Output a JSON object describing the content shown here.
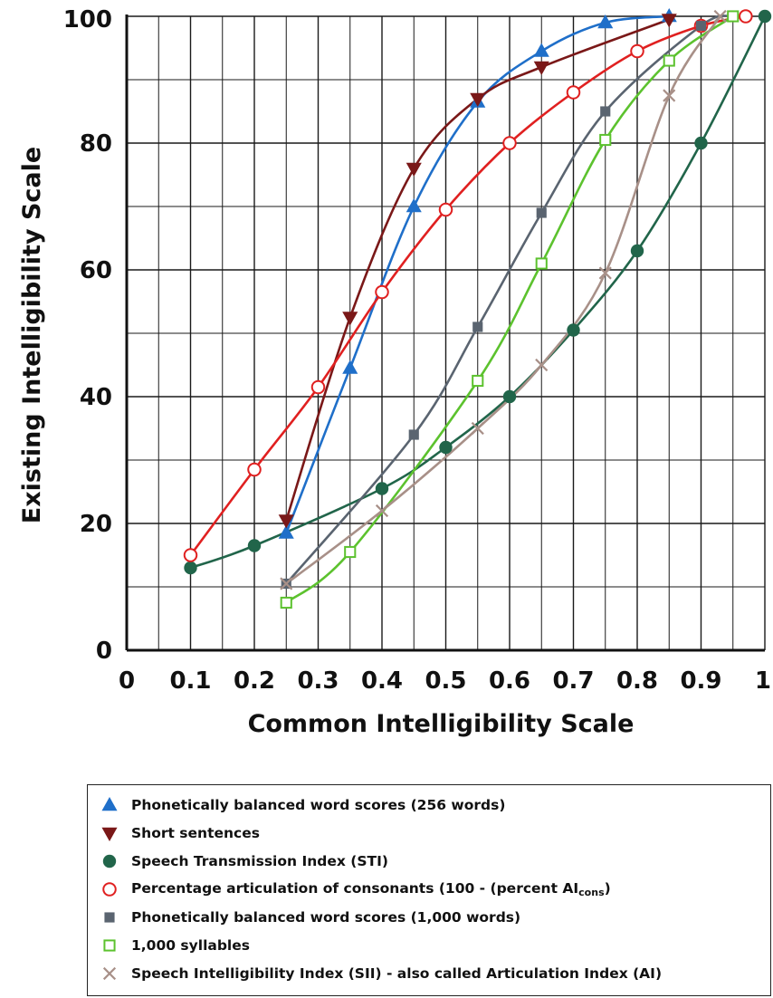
{
  "chart_data": {
    "type": "line",
    "xlabel": "Common Intelligibility Scale",
    "ylabel": "Existing Intelligibility Scale",
    "xlim": [
      0,
      1
    ],
    "ylim": [
      0,
      100
    ],
    "x_ticks": [
      "0",
      "0.1",
      "0.2",
      "0.3",
      "0.4",
      "0.5",
      "0.6",
      "0.7",
      "0.8",
      "0.9",
      "1"
    ],
    "y_ticks": [
      "0",
      "20",
      "40",
      "60",
      "80",
      "100"
    ],
    "grid": true,
    "legend_position": "bottom",
    "series": [
      {
        "name": "Phonetically balanced word scores (256 words)",
        "marker": "triangle-up",
        "color": "#1f6fc9",
        "points": [
          [
            0.25,
            18.5
          ],
          [
            0.35,
            44.5
          ],
          [
            0.45,
            70
          ],
          [
            0.55,
            86.5
          ],
          [
            0.65,
            94.5
          ],
          [
            0.75,
            99
          ],
          [
            0.85,
            100
          ]
        ]
      },
      {
        "name": "Short sentences",
        "marker": "triangle-down",
        "color": "#7a1818",
        "points": [
          [
            0.25,
            20.5
          ],
          [
            0.35,
            52.5
          ],
          [
            0.45,
            76
          ],
          [
            0.55,
            87
          ],
          [
            0.65,
            92
          ],
          [
            0.85,
            99.5
          ]
        ]
      },
      {
        "name": "Speech Transmission Index (STI)",
        "marker": "circle-filled",
        "color": "#21654a",
        "points": [
          [
            0.1,
            13
          ],
          [
            0.2,
            16.5
          ],
          [
            0.4,
            25.5
          ],
          [
            0.5,
            32
          ],
          [
            0.6,
            40
          ],
          [
            0.7,
            50.5
          ],
          [
            0.8,
            63
          ],
          [
            0.9,
            80
          ],
          [
            1.0,
            100
          ]
        ]
      },
      {
        "name": "Percentage articulation of consonants (100 - (percent AI",
        "name_sub": "cons",
        "name_suffix": ")",
        "marker": "circle-open",
        "color": "#e02020",
        "points": [
          [
            0.1,
            15
          ],
          [
            0.2,
            28.5
          ],
          [
            0.3,
            41.5
          ],
          [
            0.4,
            56.5
          ],
          [
            0.5,
            69.5
          ],
          [
            0.6,
            80
          ],
          [
            0.7,
            88
          ],
          [
            0.8,
            94.5
          ],
          [
            0.9,
            98.5
          ],
          [
            0.97,
            100
          ]
        ]
      },
      {
        "name": "Phonetically balanced word scores (1,000 words)",
        "marker": "square-filled",
        "color": "#5a6470",
        "points": [
          [
            0.25,
            10.5
          ],
          [
            0.45,
            34
          ],
          [
            0.55,
            51
          ],
          [
            0.65,
            69
          ],
          [
            0.75,
            85
          ],
          [
            0.9,
            98.5
          ],
          [
            0.95,
            100
          ]
        ]
      },
      {
        "name": "1,000 syllables",
        "marker": "square-open",
        "color": "#5cc22e",
        "points": [
          [
            0.25,
            7.5
          ],
          [
            0.35,
            15.5
          ],
          [
            0.55,
            42.5
          ],
          [
            0.65,
            61
          ],
          [
            0.75,
            80.5
          ],
          [
            0.85,
            93
          ],
          [
            0.95,
            100
          ]
        ]
      },
      {
        "name": "Speech Intelligibility Index (SII) - also called Articulation Index (AI)",
        "marker": "x",
        "color": "#a89088",
        "points": [
          [
            0.25,
            10.5
          ],
          [
            0.4,
            22
          ],
          [
            0.55,
            35
          ],
          [
            0.65,
            45
          ],
          [
            0.75,
            59.5
          ],
          [
            0.85,
            87.5
          ],
          [
            0.93,
            100
          ]
        ]
      }
    ]
  }
}
